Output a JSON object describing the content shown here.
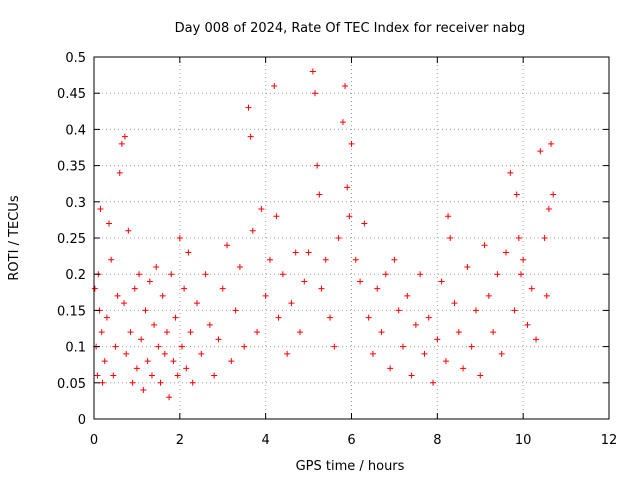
{
  "chart_data": {
    "type": "scatter",
    "title": "Day 008 of 2024, Rate Of TEC Index for receiver nabg",
    "xlabel": "GPS time / hours",
    "ylabel": "ROTI / TECUs",
    "xlim": [
      0,
      12
    ],
    "ylim": [
      0,
      0.5
    ],
    "x_ticks": [
      0,
      2,
      4,
      6,
      8,
      10,
      12
    ],
    "x_tick_labels": [
      "0",
      "2",
      "4",
      "6",
      "8",
      "10",
      "12"
    ],
    "y_ticks": [
      0,
      0.05,
      0.1,
      0.15,
      0.2,
      0.25,
      0.3,
      0.35,
      0.4,
      0.45,
      0.5
    ],
    "y_tick_labels": [
      "0",
      "0.05",
      "0.1",
      "0.15",
      "0.2",
      "0.25",
      "0.3",
      "0.35",
      "0.4",
      "0.45",
      "0.5"
    ],
    "grid": true,
    "marker": "+",
    "color": "#ff0000",
    "series": [
      {
        "name": "ROTI",
        "x": [
          0.02,
          0.05,
          0.08,
          0.1,
          0.13,
          0.15,
          0.18,
          0.2,
          0.25,
          0.3,
          0.35,
          0.4,
          0.45,
          0.5,
          0.55,
          0.6,
          0.65,
          0.7,
          0.72,
          0.75,
          0.8,
          0.85,
          0.9,
          0.95,
          1.0,
          1.05,
          1.1,
          1.15,
          1.2,
          1.25,
          1.3,
          1.35,
          1.4,
          1.45,
          1.5,
          1.55,
          1.6,
          1.65,
          1.7,
          1.75,
          1.8,
          1.85,
          1.9,
          1.95,
          2.0,
          2.05,
          2.1,
          2.15,
          2.2,
          2.25,
          2.3,
          2.4,
          2.5,
          2.6,
          2.7,
          2.8,
          2.9,
          3.0,
          3.1,
          3.2,
          3.3,
          3.4,
          3.5,
          3.6,
          3.65,
          3.7,
          3.8,
          3.9,
          4.0,
          4.1,
          4.2,
          4.25,
          4.3,
          4.4,
          4.5,
          4.6,
          4.7,
          4.8,
          4.9,
          5.0,
          5.1,
          5.15,
          5.2,
          5.25,
          5.3,
          5.4,
          5.5,
          5.6,
          5.7,
          5.8,
          5.85,
          5.9,
          5.95,
          6.0,
          6.1,
          6.2,
          6.3,
          6.4,
          6.5,
          6.6,
          6.7,
          6.8,
          6.9,
          7.0,
          7.1,
          7.2,
          7.3,
          7.4,
          7.5,
          7.6,
          7.7,
          7.8,
          7.9,
          8.0,
          8.1,
          8.2,
          8.25,
          8.3,
          8.4,
          8.5,
          8.6,
          8.7,
          8.8,
          8.9,
          9.0,
          9.1,
          9.2,
          9.3,
          9.4,
          9.5,
          9.6,
          9.7,
          9.8,
          9.85,
          9.9,
          9.95,
          10.0,
          10.1,
          10.2,
          10.3,
          10.4,
          10.5,
          10.55,
          10.6,
          10.65,
          10.7
        ],
        "y": [
          0.18,
          0.1,
          0.06,
          0.2,
          0.15,
          0.29,
          0.12,
          0.05,
          0.08,
          0.14,
          0.27,
          0.22,
          0.06,
          0.1,
          0.17,
          0.34,
          0.38,
          0.16,
          0.39,
          0.09,
          0.26,
          0.12,
          0.05,
          0.18,
          0.07,
          0.2,
          0.11,
          0.04,
          0.15,
          0.08,
          0.19,
          0.06,
          0.13,
          0.21,
          0.1,
          0.05,
          0.17,
          0.09,
          0.12,
          0.03,
          0.2,
          0.08,
          0.14,
          0.06,
          0.25,
          0.1,
          0.18,
          0.07,
          0.23,
          0.12,
          0.05,
          0.16,
          0.09,
          0.2,
          0.13,
          0.06,
          0.11,
          0.18,
          0.24,
          0.08,
          0.15,
          0.21,
          0.1,
          0.43,
          0.39,
          0.26,
          0.12,
          0.29,
          0.17,
          0.22,
          0.46,
          0.28,
          0.14,
          0.2,
          0.09,
          0.16,
          0.23,
          0.12,
          0.19,
          0.23,
          0.48,
          0.45,
          0.35,
          0.31,
          0.18,
          0.22,
          0.14,
          0.1,
          0.25,
          0.41,
          0.46,
          0.32,
          0.28,
          0.38,
          0.22,
          0.19,
          0.27,
          0.14,
          0.09,
          0.18,
          0.12,
          0.2,
          0.07,
          0.22,
          0.15,
          0.1,
          0.17,
          0.06,
          0.13,
          0.2,
          0.09,
          0.14,
          0.05,
          0.11,
          0.19,
          0.08,
          0.28,
          0.25,
          0.16,
          0.12,
          0.07,
          0.21,
          0.1,
          0.15,
          0.06,
          0.24,
          0.17,
          0.12,
          0.2,
          0.09,
          0.23,
          0.34,
          0.15,
          0.31,
          0.25,
          0.2,
          0.22,
          0.13,
          0.18,
          0.11,
          0.37,
          0.25,
          0.17,
          0.29,
          0.38,
          0.31
        ]
      }
    ]
  }
}
